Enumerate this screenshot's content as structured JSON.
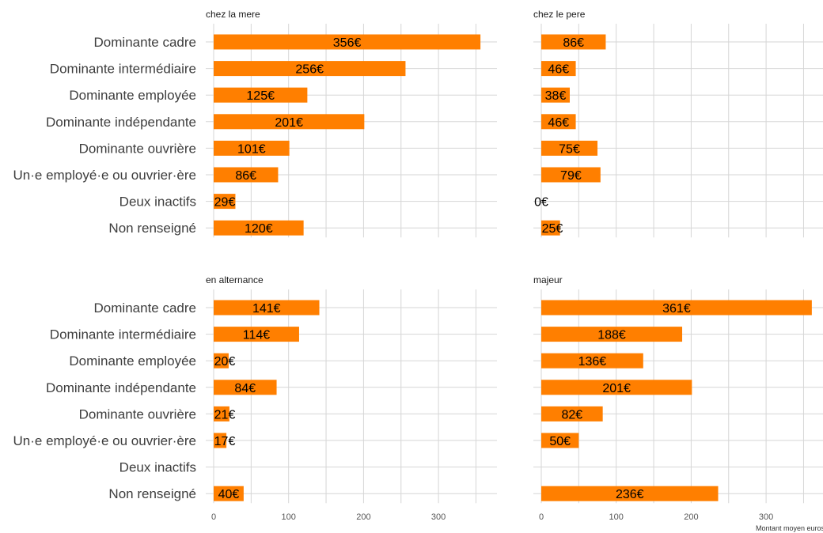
{
  "chart_data": {
    "type": "bar",
    "orientation": "horizontal",
    "xlabel": "Montant moyen euros",
    "xticks": [
      0,
      100,
      200,
      300
    ],
    "xlim": [
      0,
      370
    ],
    "grid": true,
    "colors": {
      "bar": "#FF7F00"
    },
    "categories": [
      "Dominante cadre",
      "Dominante intermédiaire",
      "Dominante employée",
      "Dominante indépendante",
      "Dominante ouvrière",
      "Un·e employé·e ou ouvrier·ère",
      "Deux inactifs",
      "Non renseigné"
    ],
    "panels": [
      {
        "name": "chez la mere",
        "values": [
          356,
          256,
          125,
          201,
          101,
          86,
          29,
          120
        ],
        "labels": [
          "356€",
          "256€",
          "125€",
          "201€",
          "101€",
          "86€",
          "29€",
          "120€"
        ]
      },
      {
        "name": "chez le pere",
        "values": [
          86,
          46,
          38,
          46,
          75,
          79,
          0,
          25
        ],
        "labels": [
          "86€",
          "46€",
          "38€",
          "46€",
          "75€",
          "79€",
          "0€",
          "25€"
        ]
      },
      {
        "name": "en alternance",
        "values": [
          141,
          114,
          20,
          84,
          21,
          17,
          null,
          40
        ],
        "labels": [
          "141€",
          "114€",
          "20€",
          "84€",
          "21€",
          "17€",
          "",
          "40€"
        ]
      },
      {
        "name": "majeur",
        "values": [
          361,
          188,
          136,
          201,
          82,
          50,
          null,
          236
        ],
        "labels": [
          "361€",
          "188€",
          "136€",
          "201€",
          "82€",
          "50€",
          "",
          "236€"
        ]
      }
    ]
  }
}
